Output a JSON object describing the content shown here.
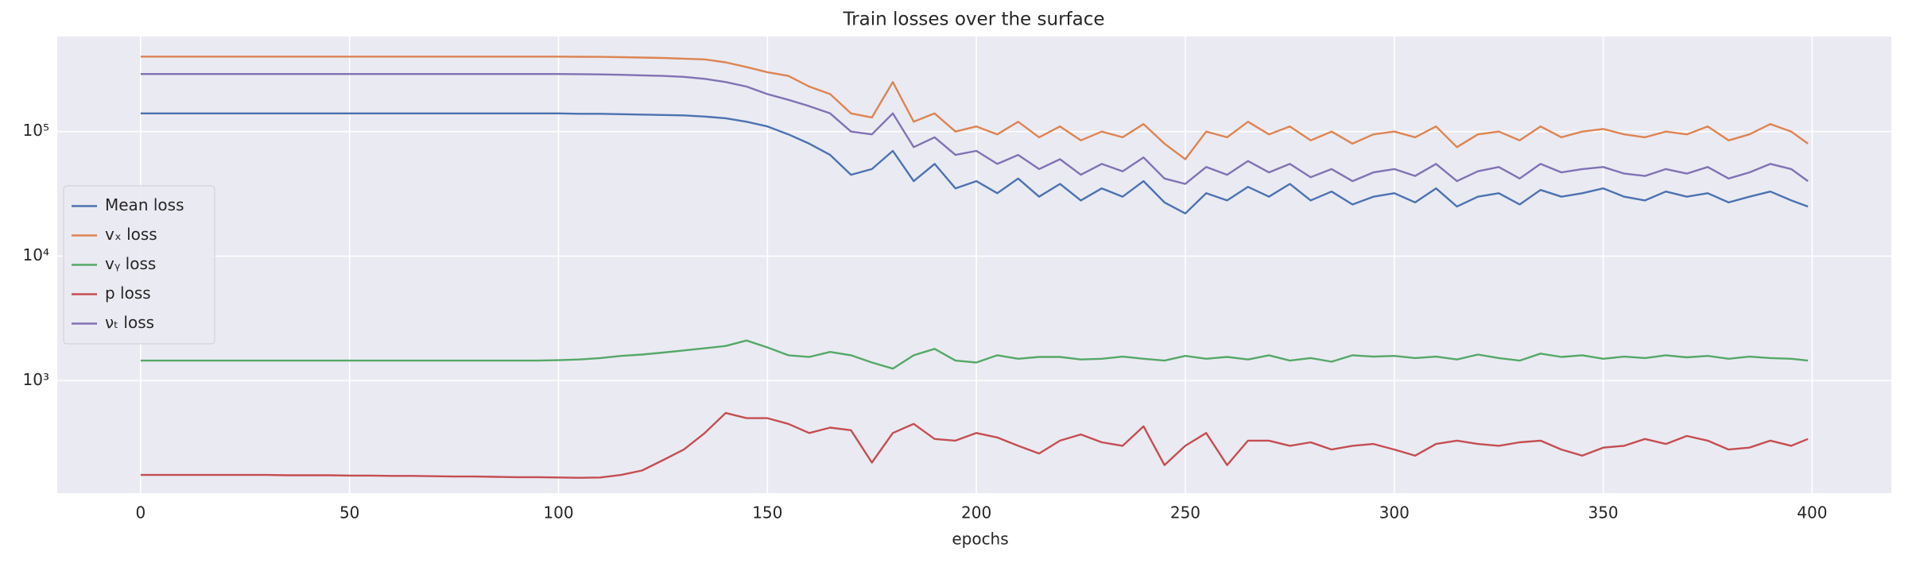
{
  "chart_data": {
    "type": "line",
    "title": "Train losses over the surface",
    "x_label": "epochs",
    "yscale": "log",
    "grid": true,
    "legend": "center left",
    "background": "#eaeaf2",
    "xlim": [
      -19.95,
      418.95
    ],
    "ylim": [
      125,
      580000
    ],
    "xticks": [
      0,
      50,
      100,
      150,
      200,
      250,
      300,
      350,
      400
    ],
    "yticks": [
      {
        "value": 1000,
        "label": "10³"
      },
      {
        "value": 10000,
        "label": "10⁴"
      },
      {
        "value": 100000,
        "label": "10⁵"
      }
    ],
    "x": [
      0,
      5,
      10,
      15,
      20,
      25,
      30,
      35,
      40,
      45,
      50,
      55,
      60,
      65,
      70,
      75,
      80,
      85,
      90,
      95,
      100,
      105,
      110,
      115,
      120,
      125,
      130,
      135,
      140,
      145,
      150,
      155,
      160,
      165,
      170,
      175,
      180,
      185,
      190,
      195,
      200,
      205,
      210,
      215,
      220,
      225,
      230,
      235,
      240,
      245,
      250,
      255,
      260,
      265,
      270,
      275,
      280,
      285,
      290,
      295,
      300,
      305,
      310,
      315,
      320,
      325,
      330,
      335,
      340,
      345,
      350,
      355,
      360,
      365,
      370,
      375,
      380,
      385,
      390,
      395,
      399
    ],
    "series": [
      {
        "name": "Mean loss",
        "color": "#4c72b0",
        "values": [
          140000,
          140000,
          140000,
          140000,
          140000,
          140000,
          140000,
          140000,
          140000,
          140000,
          140000,
          140000,
          140000,
          140000,
          140000,
          140000,
          140000,
          140000,
          140000,
          140000,
          140000,
          139000,
          139000,
          138000,
          137000,
          136000,
          135000,
          132000,
          128000,
          120000,
          110000,
          95000,
          80000,
          65000,
          45000,
          50000,
          70000,
          40000,
          55000,
          35000,
          40000,
          32000,
          42000,
          30000,
          38000,
          28000,
          35000,
          30000,
          40000,
          27000,
          22000,
          32000,
          28000,
          36000,
          30000,
          38000,
          28000,
          33000,
          26000,
          30000,
          32000,
          27000,
          35000,
          25000,
          30000,
          32000,
          26000,
          34000,
          30000,
          32000,
          35000,
          30000,
          28000,
          33000,
          30000,
          32000,
          27000,
          30000,
          33000,
          28000,
          25000
        ]
      },
      {
        "name": "vₓ loss",
        "color": "#dd8452",
        "values": [
          400000,
          400000,
          400000,
          400000,
          400000,
          400000,
          400000,
          400000,
          400000,
          400000,
          400000,
          400000,
          400000,
          400000,
          400000,
          400000,
          400000,
          400000,
          400000,
          400000,
          400000,
          399000,
          398000,
          396000,
          393000,
          390000,
          385000,
          380000,
          360000,
          330000,
          300000,
          280000,
          230000,
          200000,
          140000,
          130000,
          250000,
          120000,
          140000,
          100000,
          110000,
          95000,
          120000,
          90000,
          110000,
          85000,
          100000,
          90000,
          115000,
          80000,
          60000,
          100000,
          90000,
          120000,
          95000,
          110000,
          85000,
          100000,
          80000,
          95000,
          100000,
          90000,
          110000,
          75000,
          95000,
          100000,
          85000,
          110000,
          90000,
          100000,
          105000,
          95000,
          90000,
          100000,
          95000,
          110000,
          85000,
          95000,
          115000,
          100000,
          80000
        ]
      },
      {
        "name": "vᵧ loss",
        "color": "#55a868",
        "values": [
          1450,
          1450,
          1450,
          1450,
          1450,
          1450,
          1450,
          1450,
          1450,
          1450,
          1450,
          1450,
          1450,
          1450,
          1450,
          1450,
          1450,
          1450,
          1450,
          1450,
          1460,
          1480,
          1520,
          1580,
          1620,
          1680,
          1750,
          1820,
          1900,
          2100,
          1850,
          1600,
          1550,
          1700,
          1600,
          1400,
          1250,
          1600,
          1800,
          1450,
          1400,
          1600,
          1500,
          1550,
          1550,
          1480,
          1500,
          1560,
          1500,
          1450,
          1580,
          1500,
          1550,
          1480,
          1600,
          1450,
          1520,
          1420,
          1600,
          1560,
          1580,
          1520,
          1560,
          1480,
          1620,
          1520,
          1450,
          1650,
          1550,
          1600,
          1500,
          1560,
          1520,
          1600,
          1540,
          1580,
          1500,
          1560,
          1520,
          1500,
          1450
        ]
      },
      {
        "name": "p loss",
        "color": "#c44e52",
        "values": [
          175,
          175,
          175,
          175,
          175,
          175,
          175,
          174,
          174,
          174,
          173,
          173,
          172,
          172,
          171,
          170,
          170,
          169,
          168,
          168,
          167,
          166,
          167,
          175,
          190,
          230,
          280,
          380,
          550,
          500,
          500,
          450,
          380,
          420,
          400,
          220,
          380,
          450,
          340,
          330,
          380,
          350,
          300,
          260,
          330,
          370,
          320,
          300,
          430,
          210,
          300,
          380,
          210,
          330,
          330,
          300,
          320,
          280,
          300,
          310,
          280,
          250,
          310,
          330,
          310,
          300,
          320,
          330,
          280,
          250,
          290,
          300,
          340,
          310,
          360,
          330,
          280,
          290,
          330,
          300,
          340
        ]
      },
      {
        "name": "νₜ loss",
        "color": "#8172b3",
        "values": [
          290000,
          290000,
          290000,
          290000,
          290000,
          290000,
          290000,
          290000,
          290000,
          290000,
          290000,
          290000,
          290000,
          290000,
          290000,
          290000,
          290000,
          290000,
          290000,
          290000,
          290000,
          289000,
          288000,
          286000,
          283000,
          280000,
          275000,
          265000,
          250000,
          230000,
          200000,
          180000,
          160000,
          140000,
          100000,
          95000,
          140000,
          75000,
          90000,
          65000,
          70000,
          55000,
          65000,
          50000,
          60000,
          45000,
          55000,
          48000,
          62000,
          42000,
          38000,
          52000,
          45000,
          58000,
          47000,
          55000,
          43000,
          50000,
          40000,
          47000,
          50000,
          44000,
          55000,
          40000,
          48000,
          52000,
          42000,
          55000,
          47000,
          50000,
          52000,
          46000,
          44000,
          50000,
          46000,
          52000,
          42000,
          47000,
          55000,
          50000,
          40000
        ]
      }
    ]
  }
}
